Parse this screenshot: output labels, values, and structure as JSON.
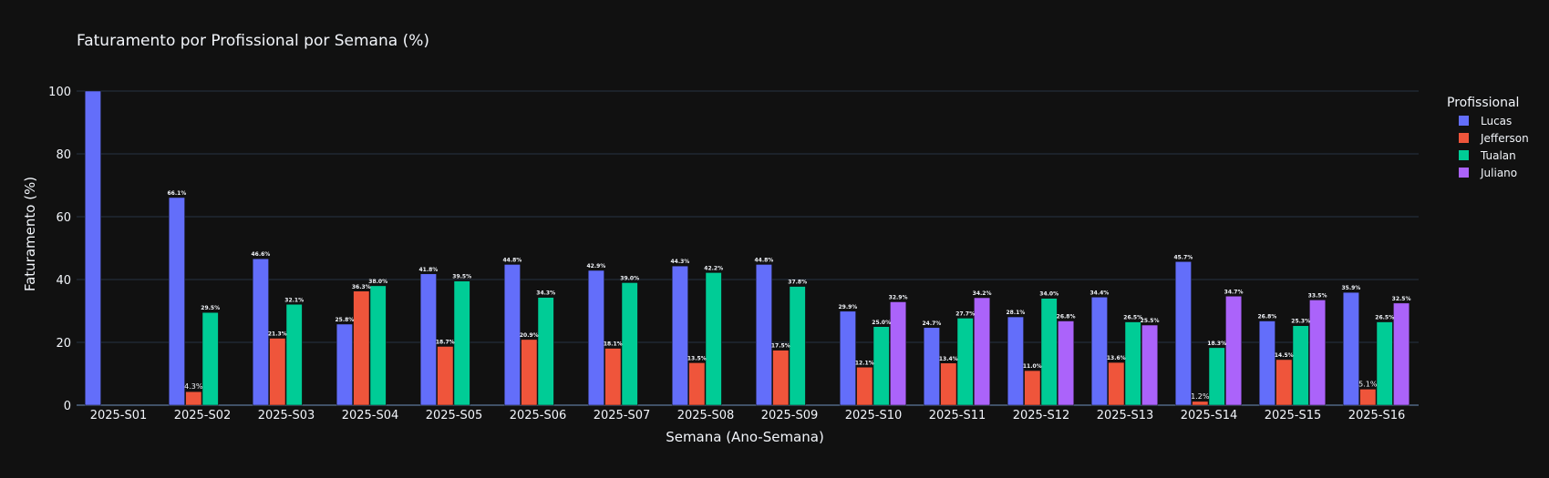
{
  "chart_data": {
    "type": "bar",
    "title": "Faturamento por Profissional por Semana (%)",
    "xlabel": "Semana (Ano-Semana)",
    "ylabel": "Faturamento (%)",
    "ylim": [
      0,
      100
    ],
    "yticks": [
      0,
      20,
      40,
      60,
      80,
      100
    ],
    "grid": true,
    "legend_title": "Profissional",
    "legend_position": "right",
    "categories": [
      "2025-S01",
      "2025-S02",
      "2025-S03",
      "2025-S04",
      "2025-S05",
      "2025-S06",
      "2025-S07",
      "2025-S08",
      "2025-S09",
      "2025-S10",
      "2025-S11",
      "2025-S12",
      "2025-S13",
      "2025-S14",
      "2025-S15",
      "2025-S16"
    ],
    "series": [
      {
        "name": "Lucas",
        "color": "#636efa",
        "values": [
          100,
          66.1,
          46.6,
          25.8,
          41.8,
          44.8,
          42.9,
          44.3,
          44.8,
          29.9,
          24.7,
          28.1,
          34.4,
          45.7,
          26.8,
          35.9
        ],
        "labels": [
          "",
          "66.1%",
          "46.6%",
          "25.8%",
          "41.8%",
          "44.8%",
          "42.9%",
          "44.3%",
          "44.8%",
          "29.9%",
          "24.7%",
          "28.1%",
          "34.4%",
          "45.7%",
          "26.8%",
          "35.9%"
        ]
      },
      {
        "name": "Jefferson",
        "color": "#ef553b",
        "values": [
          null,
          4.3,
          21.3,
          36.3,
          18.7,
          20.9,
          18.1,
          13.5,
          17.5,
          12.1,
          13.4,
          11.0,
          13.6,
          1.2,
          14.5,
          5.1
        ],
        "labels": [
          "",
          "4.3%",
          "21.3%",
          "36.3%",
          "18.7%",
          "20.9%",
          "18.1%",
          "13.5%",
          "17.5%",
          "12.1%",
          "13.4%",
          "11.0%",
          "13.6%",
          "1.2%",
          "14.5%",
          "5.1%"
        ]
      },
      {
        "name": "Tualan",
        "color": "#00cc96",
        "values": [
          null,
          29.5,
          32.1,
          38.0,
          39.5,
          34.3,
          39.0,
          42.2,
          37.8,
          25.0,
          27.7,
          34.0,
          26.5,
          18.3,
          25.3,
          26.5
        ],
        "labels": [
          "",
          "29.5%",
          "32.1%",
          "38.0%",
          "39.5%",
          "34.3%",
          "39.0%",
          "42.2%",
          "37.8%",
          "25.0%",
          "27.7%",
          "34.0%",
          "26.5%",
          "18.3%",
          "25.3%",
          "26.5%"
        ]
      },
      {
        "name": "Juliano",
        "color": "#ab63fa",
        "values": [
          null,
          null,
          null,
          null,
          null,
          null,
          null,
          null,
          null,
          32.9,
          34.2,
          26.8,
          25.5,
          34.7,
          33.5,
          32.5
        ],
        "labels": [
          "",
          "",
          "",
          "",
          "",
          "",
          "",
          "",
          "",
          "32.9%",
          "34.2%",
          "26.8%",
          "25.5%",
          "34.7%",
          "33.5%",
          "32.5%"
        ]
      }
    ]
  }
}
